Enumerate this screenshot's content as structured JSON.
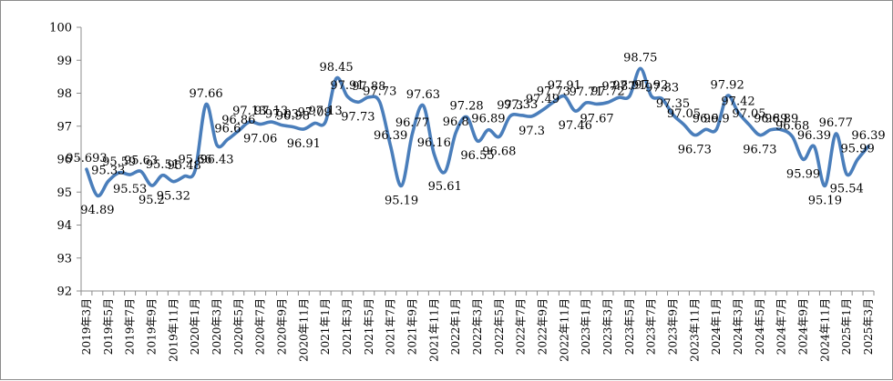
{
  "chart_data": {
    "type": "line",
    "title": "",
    "xlabel": "",
    "ylabel": "",
    "ylim": [
      92,
      100
    ],
    "yticks": [
      92,
      93,
      94,
      95,
      96,
      97,
      98,
      99,
      100
    ],
    "grid": false,
    "legend": "none",
    "line_color": "#4a7ebb",
    "x": [
      "2019年3月",
      "2019年4月",
      "2019年5月",
      "2019年6月",
      "2019年7月",
      "2019年8月",
      "2019年9月",
      "2019年10月",
      "2019年11月",
      "2019年12月",
      "2020年1月",
      "2020年2月",
      "2020年3月",
      "2020年4月",
      "2020年5月",
      "2020年6月",
      "2020年7月",
      "2020年8月",
      "2020年9月",
      "2020年10月",
      "2020年11月",
      "2020年12月",
      "2021年1月",
      "2021年2月",
      "2021年3月",
      "2021年4月",
      "2021年5月",
      "2021年6月",
      "2021年7月",
      "2021年8月",
      "2021年9月",
      "2021年10月",
      "2021年11月",
      "2021年12月",
      "2022年1月",
      "2022年2月",
      "2022年3月",
      "2022年4月",
      "2022年5月",
      "2022年6月",
      "2022年7月",
      "2022年8月",
      "2022年9月",
      "2022年10月",
      "2022年11月",
      "2022年12月",
      "2023年1月",
      "2023年2月",
      "2023年3月",
      "2023年4月",
      "2023年5月",
      "2023年6月",
      "2023年7月",
      "2023年8月",
      "2023年9月",
      "2023年10月",
      "2023年11月",
      "2023年12月",
      "2024年1月",
      "2024年2月",
      "2024年3月",
      "2024年4月",
      "2024年5月",
      "2024年6月",
      "2024年7月",
      "2024年8月",
      "2024年9月",
      "2024年10月",
      "2024年11月",
      "2024年12月",
      "2025年1月",
      "2025年2月",
      "2025年3月"
    ],
    "tick_labels": [
      "2019年3月",
      "2019年5月",
      "2019年7月",
      "2019年9月",
      "2019年11月",
      "2020年1月",
      "2020年3月",
      "2020年5月",
      "2020年7月",
      "2020年9月",
      "2020年11月",
      "2021年1月",
      "2021年3月",
      "2021年5月",
      "2021年7月",
      "2021年9月",
      "2021年11月",
      "2022年1月",
      "2022年3月",
      "2022年5月",
      "2022年7月",
      "2022年9月",
      "2022年11月",
      "2023年1月",
      "2023年3月",
      "2023年5月",
      "2023年7月",
      "2023年9月",
      "2023年11月",
      "2024年1月",
      "2024年3月",
      "2024年5月",
      "2024年7月",
      "2024年9月",
      "2024年11月",
      "2025年1月",
      "2025年3月"
    ],
    "series": [
      {
        "values": [
          95.693,
          94.89,
          95.33,
          95.59,
          95.53,
          95.63,
          95.2,
          95.51,
          95.32,
          95.48,
          95.66,
          97.66,
          96.43,
          96.6,
          96.86,
          97.13,
          97.06,
          97.13,
          97.03,
          96.98,
          96.91,
          97.09,
          97.13,
          98.45,
          97.91,
          97.73,
          97.88,
          97.73,
          96.39,
          95.19,
          96.77,
          97.63,
          96.16,
          95.61,
          96.8,
          97.28,
          96.55,
          96.89,
          96.68,
          97.3,
          97.33,
          97.3,
          97.49,
          97.73,
          97.91,
          97.46,
          97.71,
          97.67,
          97.72,
          97.87,
          97.91,
          98.75,
          97.92,
          97.83,
          97.35,
          97.05,
          96.73,
          96.9,
          96.9,
          97.92,
          97.42,
          97.05,
          96.73,
          96.89,
          96.89,
          96.68,
          95.99,
          96.39,
          95.19,
          96.77,
          95.54,
          95.99,
          96.39
        ]
      }
    ]
  }
}
